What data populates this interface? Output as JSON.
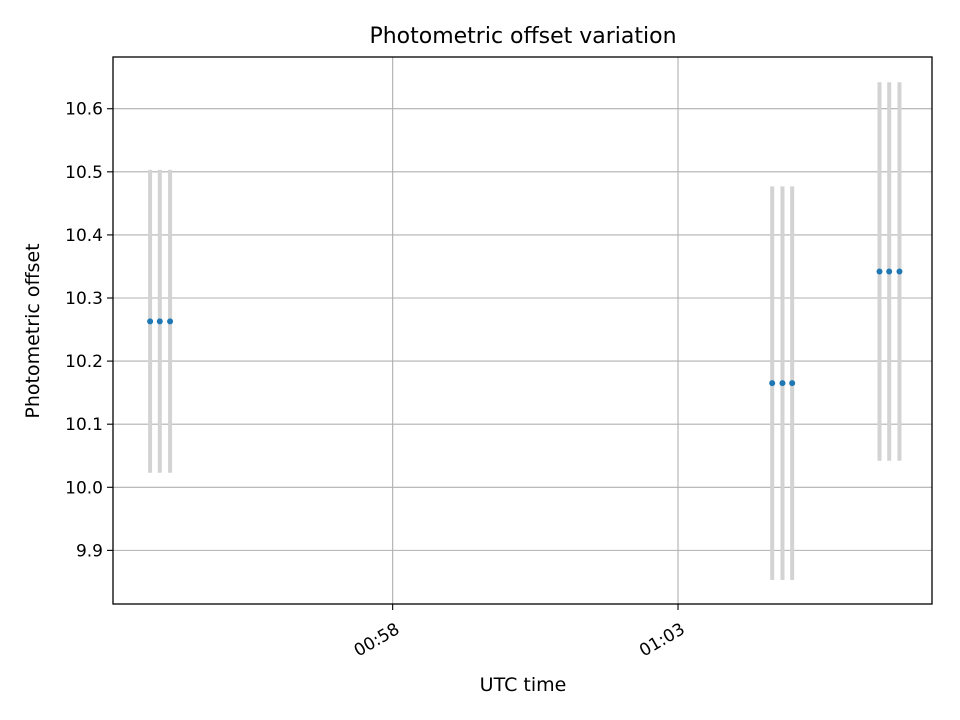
{
  "chart_data": {
    "type": "scatter",
    "title": "Photometric offset variation",
    "xlabel": "UTC time",
    "ylabel": "Photometric offset",
    "x_unit": "minutes",
    "xlim": [
      53.1,
      67.45
    ],
    "ylim": [
      9.815,
      10.682
    ],
    "x_ticks": [
      {
        "value": 58,
        "label": "00:58"
      },
      {
        "value": 63,
        "label": "01:03"
      }
    ],
    "y_ticks": [
      {
        "value": 9.9,
        "label": "9.9"
      },
      {
        "value": 10.0,
        "label": "10.0"
      },
      {
        "value": 10.1,
        "label": "10.1"
      },
      {
        "value": 10.2,
        "label": "10.2"
      },
      {
        "value": 10.3,
        "label": "10.3"
      },
      {
        "value": 10.4,
        "label": "10.4"
      },
      {
        "value": 10.5,
        "label": "10.5"
      },
      {
        "value": 10.6,
        "label": "10.6"
      }
    ],
    "grid": true,
    "legend": "none",
    "point_color": "#1f77b4",
    "errorbar_color": "#d3d3d3",
    "points": [
      {
        "x": 53.75,
        "y": 10.263,
        "yerr": 0.24
      },
      {
        "x": 53.92,
        "y": 10.263,
        "yerr": 0.24
      },
      {
        "x": 54.1,
        "y": 10.263,
        "yerr": 0.24
      },
      {
        "x": 64.65,
        "y": 10.165,
        "yerr": 0.312
      },
      {
        "x": 64.83,
        "y": 10.165,
        "yerr": 0.312
      },
      {
        "x": 65.0,
        "y": 10.165,
        "yerr": 0.312
      },
      {
        "x": 66.53,
        "y": 10.342,
        "yerr": 0.3
      },
      {
        "x": 66.7,
        "y": 10.342,
        "yerr": 0.3
      },
      {
        "x": 66.88,
        "y": 10.342,
        "yerr": 0.3
      }
    ]
  }
}
